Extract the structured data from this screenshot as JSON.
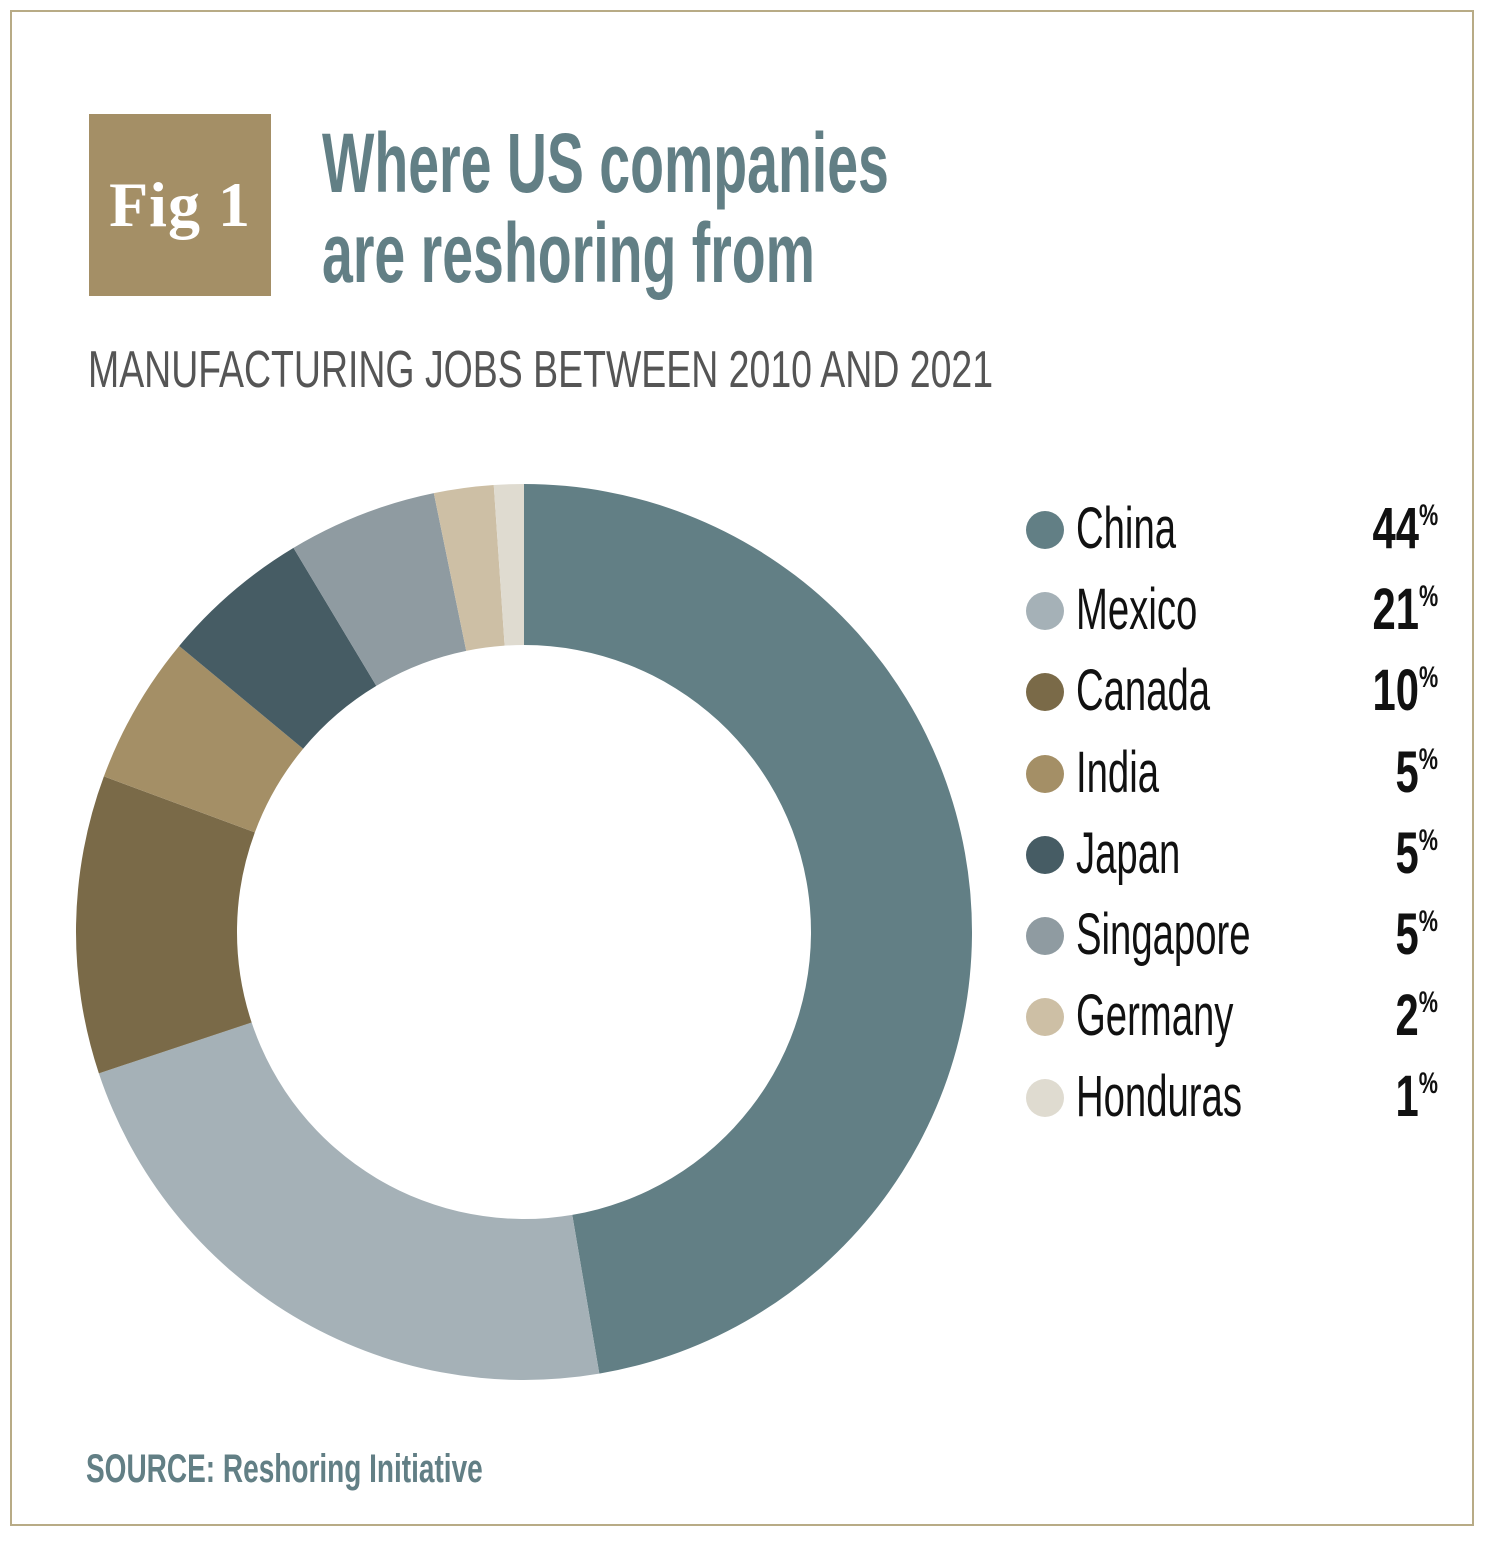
{
  "figure_label": "Fig 1",
  "chart_data": {
    "type": "pie",
    "variant": "donut",
    "title": "Where US companies are reshoring from",
    "subtitle": "MANUFACTURING JOBS BETWEEN 2010 AND 2021",
    "source": "SOURCE: Reshoring Initiative",
    "legend_placement": "right",
    "unit": "%",
    "categories": [
      "China",
      "Mexico",
      "Canada",
      "India",
      "Japan",
      "Singapore",
      "Germany",
      "Honduras"
    ],
    "values": [
      44,
      21,
      10,
      5,
      5,
      5,
      2,
      1
    ],
    "colors": [
      "#627f85",
      "#a5b1b7",
      "#7a6a48",
      "#a48f66",
      "#465c64",
      "#8f9ba1",
      "#cdbfa5",
      "#dfdbd0"
    ]
  }
}
